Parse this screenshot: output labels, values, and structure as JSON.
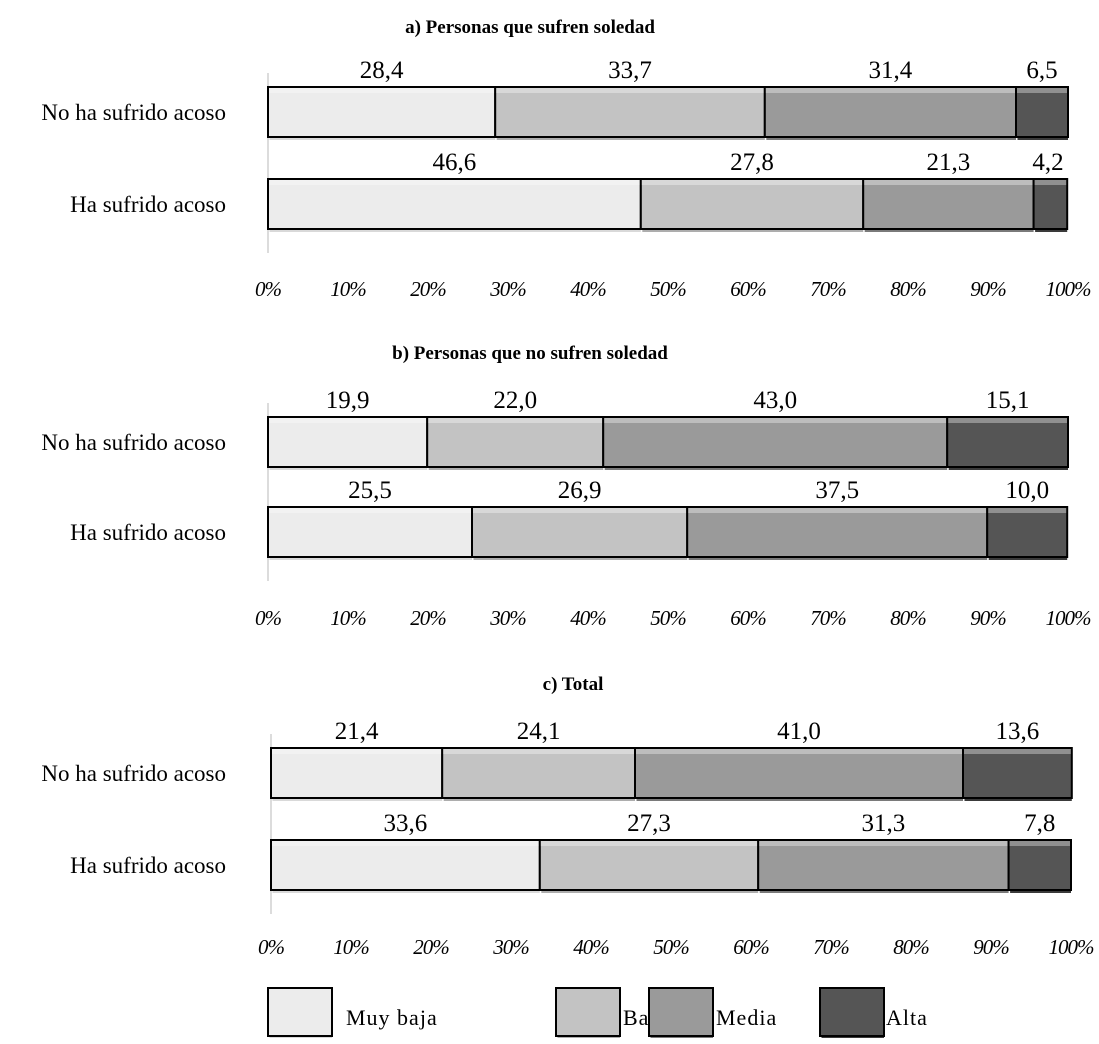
{
  "chart_data": [
    {
      "type": "bar",
      "orientation": "horizontal",
      "stacked": "percent",
      "title": "a) Personas que sufren soledad",
      "categories": [
        "No ha sufrido acoso",
        "Ha sufrido acoso"
      ],
      "series": [
        {
          "name": "Muy baja",
          "values": [
            28.4,
            46.6
          ]
        },
        {
          "name": "Baja",
          "values": [
            33.7,
            27.8
          ]
        },
        {
          "name": "Media",
          "values": [
            31.4,
            21.3
          ]
        },
        {
          "name": "Alta",
          "values": [
            6.5,
            4.2
          ]
        }
      ],
      "value_labels": [
        [
          "28,4",
          "33,7",
          "31,4",
          "6,5"
        ],
        [
          "46,6",
          "27,8",
          "21,3",
          "4,2"
        ]
      ],
      "xlim": [
        0,
        100
      ],
      "xticks": [
        "0%",
        "10%",
        "20%",
        "30%",
        "40%",
        "50%",
        "60%",
        "70%",
        "80%",
        "90%",
        "100%"
      ],
      "grid": false
    },
    {
      "type": "bar",
      "orientation": "horizontal",
      "stacked": "percent",
      "title": "b) Personas que no sufren soledad",
      "categories": [
        "No ha sufrido acoso",
        "Ha sufrido acoso"
      ],
      "series": [
        {
          "name": "Muy baja",
          "values": [
            19.9,
            25.5
          ]
        },
        {
          "name": "Baja",
          "values": [
            22.0,
            26.9
          ]
        },
        {
          "name": "Media",
          "values": [
            43.0,
            37.5
          ]
        },
        {
          "name": "Alta",
          "values": [
            15.1,
            10.0
          ]
        }
      ],
      "value_labels": [
        [
          "19,9",
          "22,0",
          "43,0",
          "15,1"
        ],
        [
          "25,5",
          "26,9",
          "37,5",
          "10,0"
        ]
      ],
      "xlim": [
        0,
        100
      ],
      "xticks": [
        "0%",
        "10%",
        "20%",
        "30%",
        "40%",
        "50%",
        "60%",
        "70%",
        "80%",
        "90%",
        "100%"
      ],
      "grid": false
    },
    {
      "type": "bar",
      "orientation": "horizontal",
      "stacked": "percent",
      "title": "c) Total",
      "categories": [
        "No ha sufrido acoso",
        "Ha sufrido acoso"
      ],
      "series": [
        {
          "name": "Muy baja",
          "values": [
            21.4,
            33.6
          ]
        },
        {
          "name": "Baja",
          "values": [
            24.1,
            27.3
          ]
        },
        {
          "name": "Media",
          "values": [
            41.0,
            31.3
          ]
        },
        {
          "name": "Alta",
          "values": [
            13.6,
            7.8
          ]
        }
      ],
      "value_labels": [
        [
          "21,4",
          "24,1",
          "41,0",
          "13,6"
        ],
        [
          "33,6",
          "27,3",
          "31,3",
          "7,8"
        ]
      ],
      "xlim": [
        0,
        100
      ],
      "xticks": [
        "0%",
        "10%",
        "20%",
        "30%",
        "40%",
        "50%",
        "60%",
        "70%",
        "80%",
        "90%",
        "100%"
      ],
      "grid": false
    }
  ],
  "legend": {
    "placement": "bottom",
    "items": [
      {
        "name": "Muy baja",
        "color": "#ececec"
      },
      {
        "name": "Baja",
        "color": "#c3c3c3"
      },
      {
        "name": "Media",
        "color": "#9a9a9a"
      },
      {
        "name": "Alta",
        "color": "#555555"
      }
    ]
  },
  "colors": {
    "segments": [
      "#ececec",
      "#c3c3c3",
      "#9a9a9a",
      "#555555"
    ],
    "shadow": [
      "#d9d9d9",
      "#adadad",
      "#7a7a7a",
      "#3a3a3a"
    ],
    "border": "#000000",
    "axis": "#d0d0d0"
  }
}
